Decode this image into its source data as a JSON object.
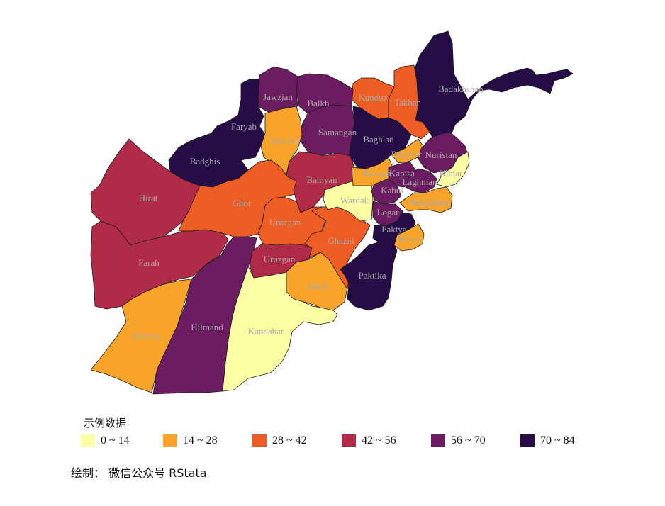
{
  "colors": {
    "c1": "#fcfea4",
    "c2": "#f8a329",
    "c3": "#ee5d24",
    "c4": "#b02b48",
    "c5": "#6c1d62",
    "c6": "#260d48",
    "label": "#a9a9a9",
    "border": "#1a1a1a"
  },
  "provinces": [
    {
      "name": "Badakhshan",
      "class": 6
    },
    {
      "name": "Takhar",
      "class": 3
    },
    {
      "name": "Kunduz",
      "class": 3
    },
    {
      "name": "Baghlan",
      "class": 6
    },
    {
      "name": "Balkh",
      "class": 5
    },
    {
      "name": "Jawzjan",
      "class": 5
    },
    {
      "name": "Samangan",
      "class": 5
    },
    {
      "name": "Faryab",
      "class": 6
    },
    {
      "name": "Sari Pul",
      "class": 2
    },
    {
      "name": "Badghis",
      "class": 6
    },
    {
      "name": "Hirat",
      "class": 4
    },
    {
      "name": "Farah",
      "class": 4
    },
    {
      "name": "Nimroz",
      "class": 2
    },
    {
      "name": "Hilmand",
      "class": 5
    },
    {
      "name": "Kandahar",
      "class": 1
    },
    {
      "name": "Ghor",
      "class": 3
    },
    {
      "name": "Bamyan",
      "class": 4
    },
    {
      "name": "Uruzgan",
      "class": 3
    },
    {
      "name": "Uruzgan",
      "class": 4
    },
    {
      "name": "Zabul",
      "class": 2
    },
    {
      "name": "Ghazni",
      "class": 3
    },
    {
      "name": "Paktika",
      "class": 6
    },
    {
      "name": "Wardak",
      "class": 1
    },
    {
      "name": "Parwan",
      "class": 2
    },
    {
      "name": "Panjshir",
      "class": 2
    },
    {
      "name": "Kapisa",
      "class": 5
    },
    {
      "name": "Nuristan",
      "class": 5
    },
    {
      "name": "Kunar",
      "class": 1
    },
    {
      "name": "Laghman",
      "class": 5
    },
    {
      "name": "Kabul",
      "class": 5
    },
    {
      "name": "Logar",
      "class": 5
    },
    {
      "name": "Nangarhar",
      "class": 2
    },
    {
      "name": "Paktya",
      "class": 6
    },
    {
      "name": "Khost",
      "class": 2
    }
  ],
  "legend": {
    "title": "示例数据",
    "items": [
      {
        "label": "0 ~ 14",
        "class": 1
      },
      {
        "label": "14 ~ 28",
        "class": 2
      },
      {
        "label": "28 ~ 42",
        "class": 3
      },
      {
        "label": "42 ~ 56",
        "class": 4
      },
      {
        "label": "56 ~ 70",
        "class": 5
      },
      {
        "label": "70 ~ 84",
        "class": 6
      }
    ]
  },
  "caption": "绘制： 微信公众号 RStata"
}
